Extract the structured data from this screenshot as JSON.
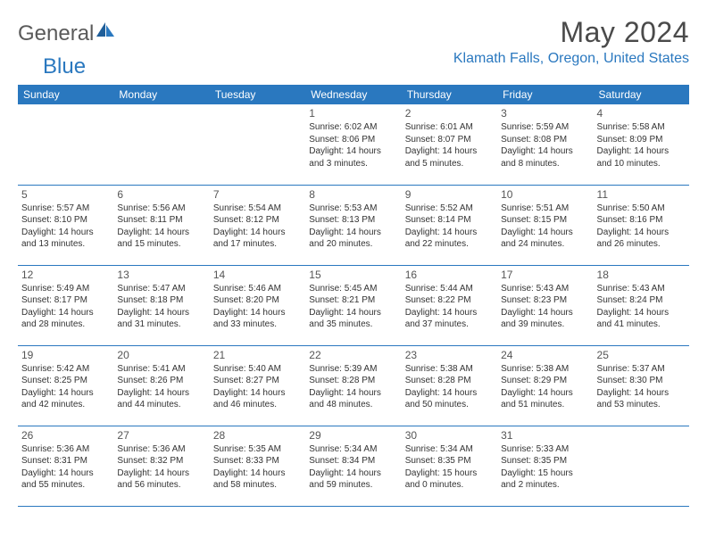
{
  "brand": {
    "word1": "General",
    "word2": "Blue",
    "text_color": "#5a5a5a",
    "accent_color": "#2a78bf"
  },
  "header": {
    "month_title": "May 2024",
    "location": "Klamath Falls, Oregon, United States"
  },
  "calendar": {
    "day_labels": [
      "Sunday",
      "Monday",
      "Tuesday",
      "Wednesday",
      "Thursday",
      "Friday",
      "Saturday"
    ],
    "header_bg": "#2a78bf",
    "header_fg": "#ffffff",
    "rule_color": "#2a78bf",
    "weeks": [
      [
        null,
        null,
        null,
        {
          "n": "1",
          "sr": "6:02 AM",
          "ss": "8:06 PM",
          "dl": "14 hours and 3 minutes."
        },
        {
          "n": "2",
          "sr": "6:01 AM",
          "ss": "8:07 PM",
          "dl": "14 hours and 5 minutes."
        },
        {
          "n": "3",
          "sr": "5:59 AM",
          "ss": "8:08 PM",
          "dl": "14 hours and 8 minutes."
        },
        {
          "n": "4",
          "sr": "5:58 AM",
          "ss": "8:09 PM",
          "dl": "14 hours and 10 minutes."
        }
      ],
      [
        {
          "n": "5",
          "sr": "5:57 AM",
          "ss": "8:10 PM",
          "dl": "14 hours and 13 minutes."
        },
        {
          "n": "6",
          "sr": "5:56 AM",
          "ss": "8:11 PM",
          "dl": "14 hours and 15 minutes."
        },
        {
          "n": "7",
          "sr": "5:54 AM",
          "ss": "8:12 PM",
          "dl": "14 hours and 17 minutes."
        },
        {
          "n": "8",
          "sr": "5:53 AM",
          "ss": "8:13 PM",
          "dl": "14 hours and 20 minutes."
        },
        {
          "n": "9",
          "sr": "5:52 AM",
          "ss": "8:14 PM",
          "dl": "14 hours and 22 minutes."
        },
        {
          "n": "10",
          "sr": "5:51 AM",
          "ss": "8:15 PM",
          "dl": "14 hours and 24 minutes."
        },
        {
          "n": "11",
          "sr": "5:50 AM",
          "ss": "8:16 PM",
          "dl": "14 hours and 26 minutes."
        }
      ],
      [
        {
          "n": "12",
          "sr": "5:49 AM",
          "ss": "8:17 PM",
          "dl": "14 hours and 28 minutes."
        },
        {
          "n": "13",
          "sr": "5:47 AM",
          "ss": "8:18 PM",
          "dl": "14 hours and 31 minutes."
        },
        {
          "n": "14",
          "sr": "5:46 AM",
          "ss": "8:20 PM",
          "dl": "14 hours and 33 minutes."
        },
        {
          "n": "15",
          "sr": "5:45 AM",
          "ss": "8:21 PM",
          "dl": "14 hours and 35 minutes."
        },
        {
          "n": "16",
          "sr": "5:44 AM",
          "ss": "8:22 PM",
          "dl": "14 hours and 37 minutes."
        },
        {
          "n": "17",
          "sr": "5:43 AM",
          "ss": "8:23 PM",
          "dl": "14 hours and 39 minutes."
        },
        {
          "n": "18",
          "sr": "5:43 AM",
          "ss": "8:24 PM",
          "dl": "14 hours and 41 minutes."
        }
      ],
      [
        {
          "n": "19",
          "sr": "5:42 AM",
          "ss": "8:25 PM",
          "dl": "14 hours and 42 minutes."
        },
        {
          "n": "20",
          "sr": "5:41 AM",
          "ss": "8:26 PM",
          "dl": "14 hours and 44 minutes."
        },
        {
          "n": "21",
          "sr": "5:40 AM",
          "ss": "8:27 PM",
          "dl": "14 hours and 46 minutes."
        },
        {
          "n": "22",
          "sr": "5:39 AM",
          "ss": "8:28 PM",
          "dl": "14 hours and 48 minutes."
        },
        {
          "n": "23",
          "sr": "5:38 AM",
          "ss": "8:28 PM",
          "dl": "14 hours and 50 minutes."
        },
        {
          "n": "24",
          "sr": "5:38 AM",
          "ss": "8:29 PM",
          "dl": "14 hours and 51 minutes."
        },
        {
          "n": "25",
          "sr": "5:37 AM",
          "ss": "8:30 PM",
          "dl": "14 hours and 53 minutes."
        }
      ],
      [
        {
          "n": "26",
          "sr": "5:36 AM",
          "ss": "8:31 PM",
          "dl": "14 hours and 55 minutes."
        },
        {
          "n": "27",
          "sr": "5:36 AM",
          "ss": "8:32 PM",
          "dl": "14 hours and 56 minutes."
        },
        {
          "n": "28",
          "sr": "5:35 AM",
          "ss": "8:33 PM",
          "dl": "14 hours and 58 minutes."
        },
        {
          "n": "29",
          "sr": "5:34 AM",
          "ss": "8:34 PM",
          "dl": "14 hours and 59 minutes."
        },
        {
          "n": "30",
          "sr": "5:34 AM",
          "ss": "8:35 PM",
          "dl": "15 hours and 0 minutes."
        },
        {
          "n": "31",
          "sr": "5:33 AM",
          "ss": "8:35 PM",
          "dl": "15 hours and 2 minutes."
        },
        null
      ]
    ],
    "labels": {
      "sunrise_prefix": "Sunrise: ",
      "sunset_prefix": "Sunset: ",
      "daylight_prefix": "Daylight: "
    }
  }
}
